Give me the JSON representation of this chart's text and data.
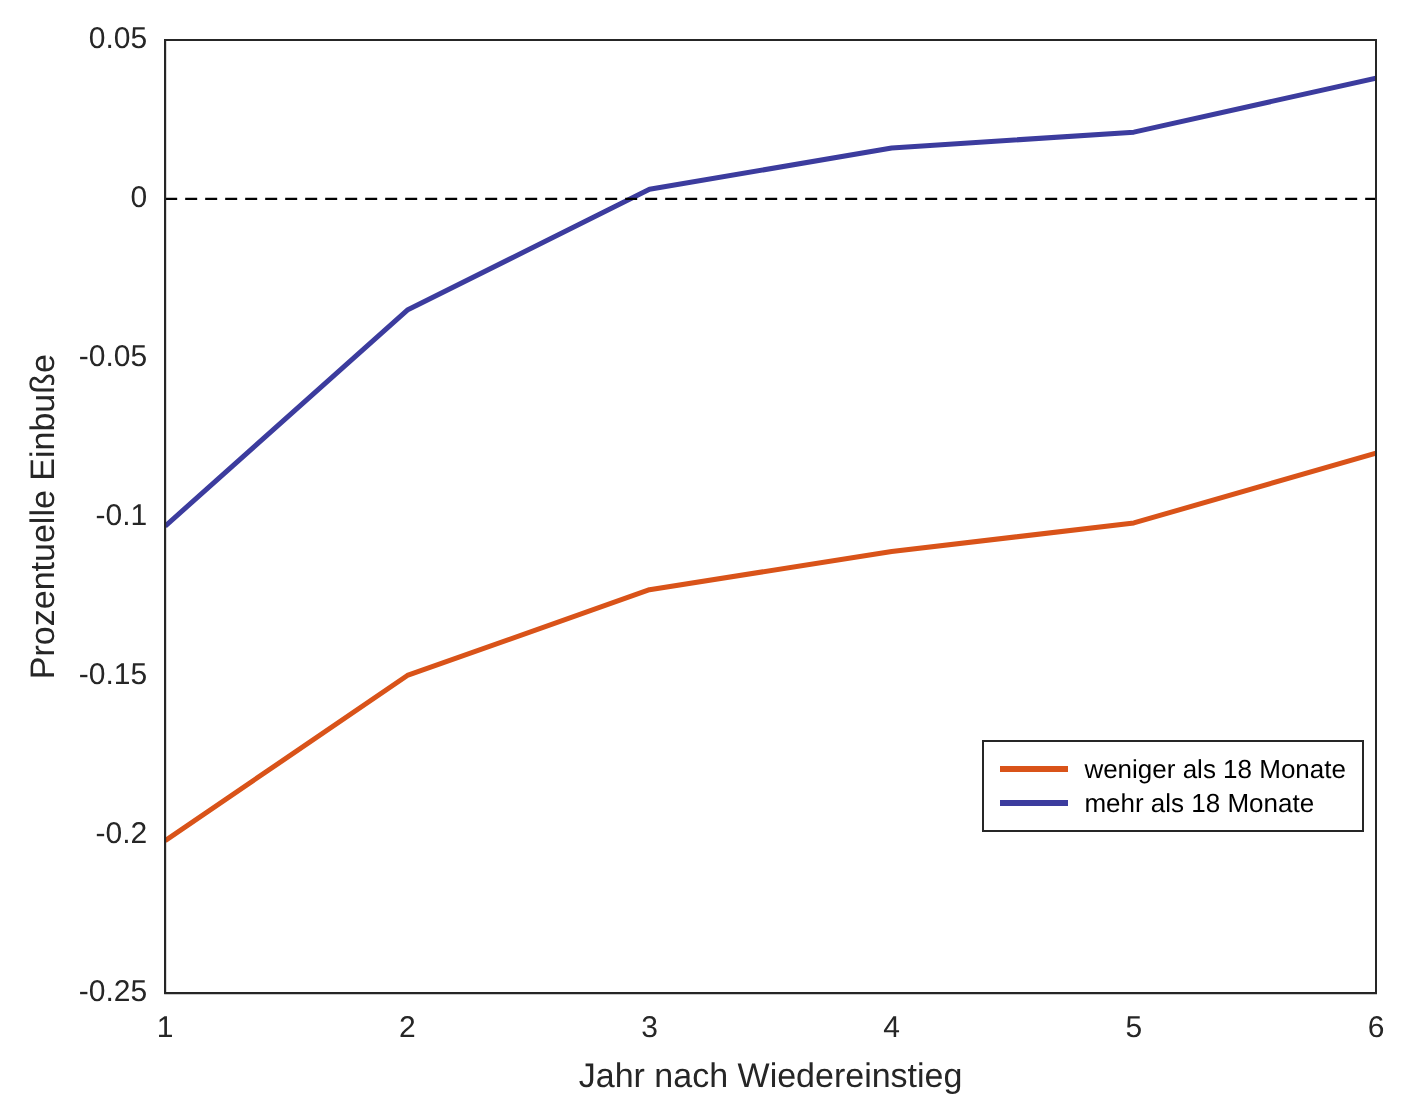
{
  "chart_data": {
    "type": "line",
    "xlabel": "Jahr nach Wiedereinstieg",
    "ylabel": "Prozentuelle Einbuße",
    "x": [
      1,
      2,
      3,
      4,
      5,
      6
    ],
    "series": [
      {
        "name": "weniger als 18 Monate",
        "color": "#d95319",
        "values": [
          -0.202,
          -0.15,
          -0.123,
          -0.111,
          -0.102,
          -0.08
        ]
      },
      {
        "name": "mehr als 18 Monate",
        "color": "#3c3c9e",
        "values": [
          -0.103,
          -0.035,
          0.003,
          0.016,
          0.021,
          0.038
        ]
      }
    ],
    "xlim": [
      1,
      6
    ],
    "xticks": [
      1,
      2,
      3,
      4,
      5,
      6
    ],
    "ylim": [
      -0.25,
      0.05
    ],
    "yticks": [
      -0.25,
      -0.2,
      -0.15,
      -0.1,
      -0.05,
      0,
      0.05
    ],
    "ref_lines": [
      {
        "axis": "y",
        "value": 0,
        "color": "#000000",
        "line_style": "dashed"
      }
    ],
    "grid": false,
    "legend": "bottom right",
    "marker": "none",
    "line_style": "solid"
  }
}
